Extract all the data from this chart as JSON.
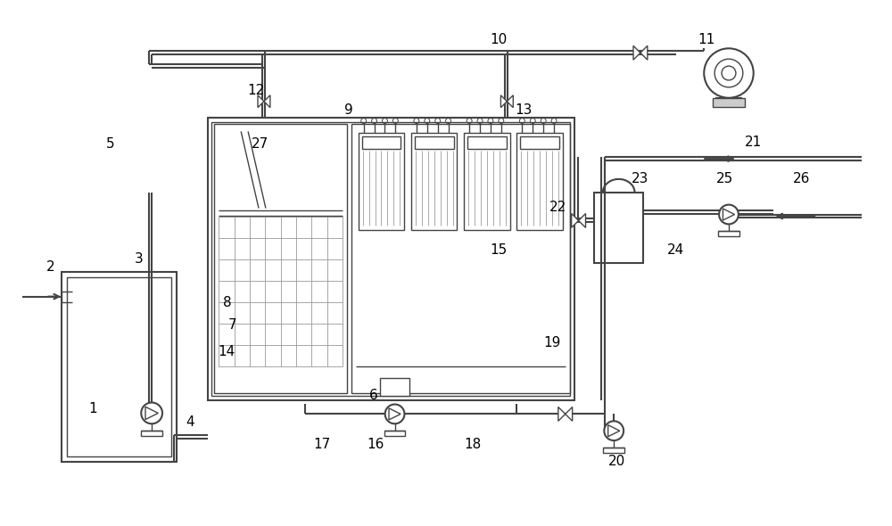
{
  "bg_color": "#ffffff",
  "lc": "#444444",
  "lw": 1.5,
  "tlw": 1.0
}
